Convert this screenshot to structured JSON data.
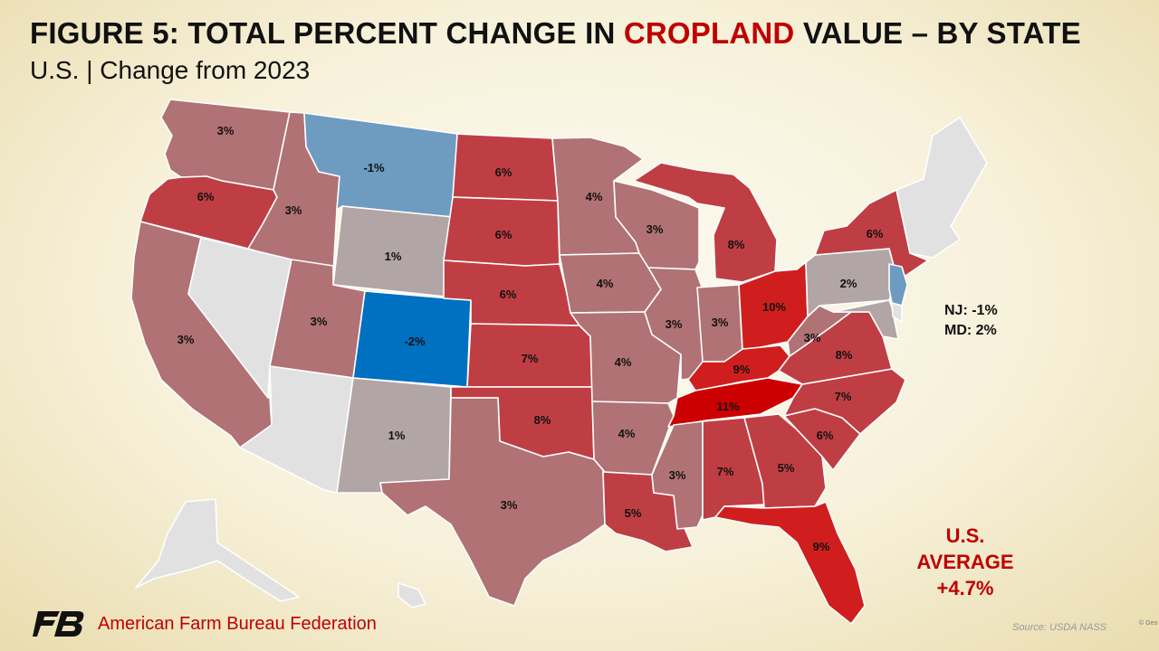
{
  "title": {
    "prefix": "FIGURE 5: TOTAL PERCENT CHANGE IN ",
    "highlight": "CROPLAND",
    "suffix": " VALUE – BY STATE"
  },
  "subtitle": "U.S. | Change from 2023",
  "notes": {
    "nj": "NJ: -1%",
    "md": "MD: 2%"
  },
  "us_average": {
    "line1": "U.S.",
    "line2": "AVERAGE",
    "line3": "+4.7%"
  },
  "organization": "American Farm Bureau Federation",
  "source": "Source: USDA NASS",
  "copyright": "© Geo",
  "colors": {
    "no_data": "#e1e1e1",
    "neg_large": "#0070c0",
    "neg_small": "#6e9bc0",
    "neutral_low": "#b2a5a6",
    "low": "#b07274",
    "mid": "#bf3e44",
    "high": "#d01e1e",
    "highest": "#cc0000",
    "accent": "#c00000"
  },
  "states": [
    {
      "id": "WA",
      "label": "3%",
      "value": 3
    },
    {
      "id": "OR",
      "label": "6%",
      "value": 6
    },
    {
      "id": "CA",
      "label": "3%",
      "value": 3
    },
    {
      "id": "ID",
      "label": "3%",
      "value": 3
    },
    {
      "id": "NV",
      "label": "",
      "value": null
    },
    {
      "id": "MT",
      "label": "-1%",
      "value": -1
    },
    {
      "id": "WY",
      "label": "1%",
      "value": 1
    },
    {
      "id": "UT",
      "label": "3%",
      "value": 3
    },
    {
      "id": "AZ",
      "label": "",
      "value": null
    },
    {
      "id": "CO",
      "label": "-2%",
      "value": -2
    },
    {
      "id": "NM",
      "label": "1%",
      "value": 1
    },
    {
      "id": "ND",
      "label": "6%",
      "value": 6
    },
    {
      "id": "SD",
      "label": "6%",
      "value": 6
    },
    {
      "id": "NE",
      "label": "6%",
      "value": 6
    },
    {
      "id": "KS",
      "label": "7%",
      "value": 7
    },
    {
      "id": "OK",
      "label": "8%",
      "value": 8
    },
    {
      "id": "TX",
      "label": "3%",
      "value": 3
    },
    {
      "id": "MN",
      "label": "4%",
      "value": 4
    },
    {
      "id": "IA",
      "label": "4%",
      "value": 4
    },
    {
      "id": "MO",
      "label": "4%",
      "value": 4
    },
    {
      "id": "AR",
      "label": "4%",
      "value": 4
    },
    {
      "id": "LA",
      "label": "5%",
      "value": 5
    },
    {
      "id": "WI",
      "label": "3%",
      "value": 3
    },
    {
      "id": "IL",
      "label": "3%",
      "value": 3
    },
    {
      "id": "MI",
      "label": "8%",
      "value": 8
    },
    {
      "id": "IN",
      "label": "3%",
      "value": 3
    },
    {
      "id": "OH",
      "label": "10%",
      "value": 10
    },
    {
      "id": "KY",
      "label": "9%",
      "value": 9
    },
    {
      "id": "TN",
      "label": "11%",
      "value": 11
    },
    {
      "id": "MS",
      "label": "3%",
      "value": 3
    },
    {
      "id": "AL",
      "label": "7%",
      "value": 7
    },
    {
      "id": "GA",
      "label": "5%",
      "value": 5
    },
    {
      "id": "FL",
      "label": "9%",
      "value": 9
    },
    {
      "id": "SC",
      "label": "6%",
      "value": 6
    },
    {
      "id": "NC",
      "label": "7%",
      "value": 7
    },
    {
      "id": "VA",
      "label": "8%",
      "value": 8
    },
    {
      "id": "WV",
      "label": "3%",
      "value": 3
    },
    {
      "id": "PA",
      "label": "2%",
      "value": 2
    },
    {
      "id": "NY",
      "label": "6%",
      "value": 6
    },
    {
      "id": "NJ",
      "label": "",
      "value": -1
    },
    {
      "id": "MD",
      "label": "",
      "value": 2
    },
    {
      "id": "DE",
      "label": "",
      "value": null
    },
    {
      "id": "NE_STATES",
      "label": "",
      "value": null
    },
    {
      "id": "AK",
      "label": "",
      "value": null
    },
    {
      "id": "HI",
      "label": "",
      "value": null
    }
  ]
}
